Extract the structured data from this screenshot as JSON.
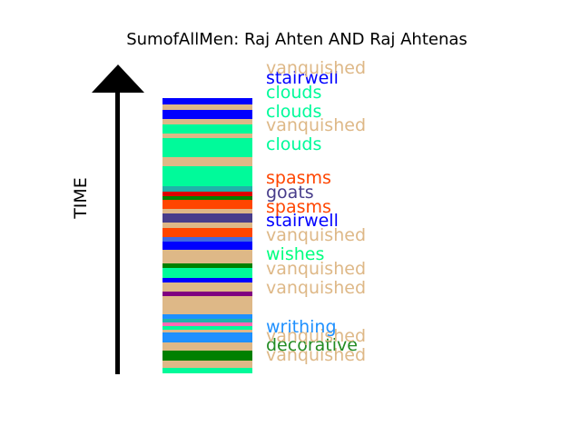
{
  "title": "SumofAllMen: Raj Ahten AND Raj Ahtenas",
  "axis_label": "TIME",
  "chart_data": {
    "type": "bar",
    "title": "SumofAllMen: Raj Ahten AND Raj Ahtenas",
    "ylabel": "TIME",
    "orientation": "stacked timeline column, bottom to top",
    "legend": "none",
    "grid": false,
    "colors": {
      "vanquished": "#deb887",
      "stairwell": "#0000ff",
      "clouds": "#00fa9a",
      "spasms": "#ff4500",
      "goats": "#483d8b",
      "wishes": "#00ff7f",
      "writhing": "#1e90ff",
      "decorative": "#228b22",
      "purple": "#800080",
      "red": "#dd0000",
      "darkgreen": "#008000",
      "teal": "#20b2aa",
      "hotpink": "#ff69b4",
      "azure": "#1e90ff",
      "royal": "#4169e1"
    },
    "segments": [
      {
        "color": "clouds",
        "height": 6
      },
      {
        "color": "vanquished",
        "height": 8
      },
      {
        "color": "darkgreen",
        "height": 11
      },
      {
        "color": "vanquished",
        "height": 9
      },
      {
        "color": "writhing",
        "height": 11
      },
      {
        "color": "vanquished",
        "height": 3
      },
      {
        "color": "clouds",
        "height": 4
      },
      {
        "color": "hotpink",
        "height": 4
      },
      {
        "color": "teal",
        "height": 4
      },
      {
        "color": "azure",
        "height": 5
      },
      {
        "color": "vanquished",
        "height": 20
      },
      {
        "color": "purple",
        "height": 5
      },
      {
        "color": "vanquished",
        "height": 10
      },
      {
        "color": "stairwell",
        "height": 5
      },
      {
        "color": "clouds",
        "height": 11
      },
      {
        "color": "darkgreen",
        "height": 5
      },
      {
        "color": "vanquished",
        "height": 15
      },
      {
        "color": "stairwell",
        "height": 9
      },
      {
        "color": "royal",
        "height": 5
      },
      {
        "color": "spasms",
        "height": 10
      },
      {
        "color": "vanquished",
        "height": 6
      },
      {
        "color": "goats",
        "height": 10
      },
      {
        "color": "vanquished",
        "height": 5
      },
      {
        "color": "spasms",
        "height": 10
      },
      {
        "color": "darkgreen",
        "height": 4
      },
      {
        "color": "red",
        "height": 5
      },
      {
        "color": "teal",
        "height": 6
      },
      {
        "color": "clouds",
        "height": 22
      },
      {
        "color": "vanquished",
        "height": 10
      },
      {
        "color": "clouds",
        "height": 21
      },
      {
        "color": "vanquished",
        "height": 5
      },
      {
        "color": "clouds",
        "height": 10
      },
      {
        "color": "vanquished",
        "height": 6
      },
      {
        "color": "stairwell",
        "height": 10
      },
      {
        "color": "vanquished",
        "height": 6
      },
      {
        "color": "stairwell",
        "height": 7
      }
    ],
    "labels": [
      {
        "text": "vanquished",
        "color": "vanquished",
        "y": 10
      },
      {
        "text": "decorative",
        "color": "decorative",
        "y": 21
      },
      {
        "text": "vanquished",
        "color": "vanquished",
        "y": 31
      },
      {
        "text": "writhing",
        "color": "writhing",
        "y": 41
      },
      {
        "text": "vanquished",
        "color": "vanquished",
        "y": 84
      },
      {
        "text": "vanquished",
        "color": "vanquished",
        "y": 105
      },
      {
        "text": "wishes",
        "color": "wishes",
        "y": 121
      },
      {
        "text": "vanquished",
        "color": "vanquished",
        "y": 142
      },
      {
        "text": "stairwell",
        "color": "stairwell",
        "y": 158
      },
      {
        "text": "spasms",
        "color": "spasms",
        "y": 173
      },
      {
        "text": "goats",
        "color": "goats",
        "y": 189
      },
      {
        "text": "spasms",
        "color": "spasms",
        "y": 205
      },
      {
        "text": "clouds",
        "color": "clouds",
        "y": 242
      },
      {
        "text": "vanquished",
        "color": "vanquished",
        "y": 263
      },
      {
        "text": "clouds",
        "color": "clouds",
        "y": 278
      },
      {
        "text": "clouds",
        "color": "clouds",
        "y": 299
      },
      {
        "text": "stairwell",
        "color": "stairwell",
        "y": 315
      },
      {
        "text": "vanquished",
        "color": "vanquished",
        "y": 326
      }
    ]
  }
}
